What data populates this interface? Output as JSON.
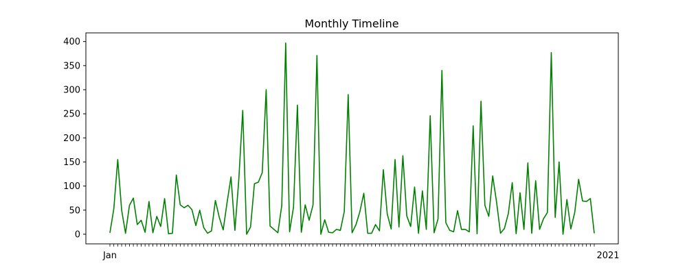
{
  "chart_data": {
    "type": "line",
    "title": "Monthly Timeline",
    "xlabel": "",
    "ylabel": "",
    "line_color": "#008000",
    "x_tick_labels_visible": [
      "Jan",
      "2021"
    ],
    "x_tick_labels_count": 129,
    "y_ticks": [
      0,
      50,
      100,
      150,
      200,
      250,
      300,
      350,
      400
    ],
    "ylim": [
      -20,
      418
    ],
    "grid": false,
    "values": [
      3,
      53,
      155,
      50,
      2,
      60,
      75,
      20,
      29,
      4,
      68,
      3,
      37,
      16,
      74,
      1,
      2,
      123,
      61,
      55,
      60,
      51,
      18,
      50,
      14,
      2,
      7,
      70,
      35,
      9,
      66,
      119,
      8,
      114,
      257,
      0,
      15,
      105,
      108,
      128,
      300,
      17,
      10,
      3,
      60,
      397,
      5,
      56,
      268,
      4,
      61,
      29,
      61,
      371,
      0,
      30,
      4,
      3,
      10,
      8,
      47,
      290,
      3,
      20,
      47,
      85,
      2,
      2,
      20,
      7,
      134,
      42,
      11,
      155,
      15,
      163,
      38,
      16,
      98,
      2,
      90,
      10,
      246,
      3,
      32,
      340,
      24,
      8,
      5,
      49,
      10,
      10,
      5,
      225,
      1,
      276,
      60,
      37,
      121,
      66,
      2,
      12,
      43,
      107,
      1,
      86,
      10,
      148,
      2,
      111,
      10,
      32,
      45,
      377,
      35,
      150,
      0,
      72,
      11,
      45,
      114,
      69,
      68,
      74,
      2
    ]
  }
}
